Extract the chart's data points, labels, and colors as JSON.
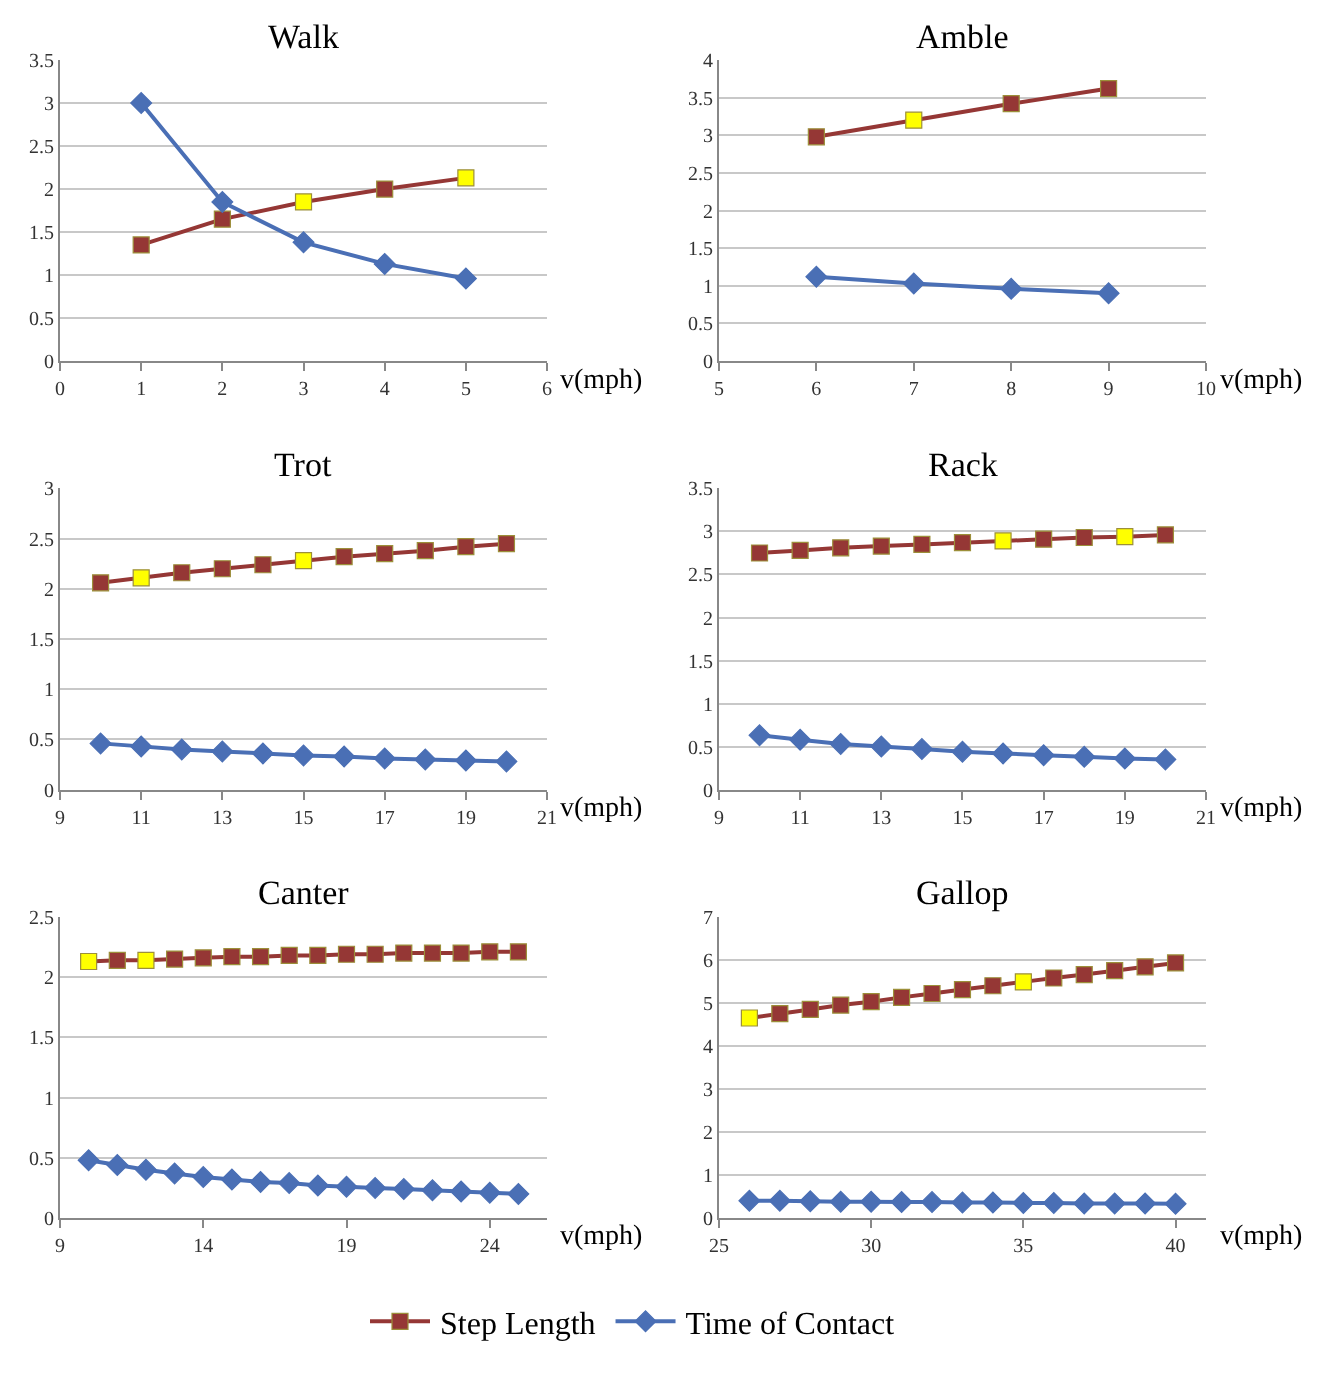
{
  "chart_data": [
    {
      "type": "line",
      "title": "Walk",
      "xlabel": "v(mph)",
      "x": [
        1,
        2,
        3,
        4,
        5
      ],
      "xlim": [
        0,
        6
      ],
      "xticks": [
        0,
        1,
        2,
        3,
        4,
        5,
        6
      ],
      "ylim": [
        0,
        3.5
      ],
      "yticks": [
        0,
        0.5,
        1,
        1.5,
        2,
        2.5,
        3,
        3.5
      ],
      "grid": "y",
      "legend": "bottom",
      "series": [
        {
          "name": "Step Length",
          "color": "#953735",
          "marker": "square",
          "values": [
            1.35,
            1.65,
            1.85,
            2.0,
            2.13
          ],
          "colors": [
            "#953735",
            "#953735",
            "#ffff00",
            "#953735",
            "#ffff00"
          ]
        },
        {
          "name": "Time of Contact",
          "color": "#4a6fb5",
          "marker": "diamond",
          "values": [
            3.0,
            1.85,
            1.38,
            1.13,
            0.96
          ]
        }
      ]
    },
    {
      "type": "line",
      "title": "Amble",
      "xlabel": "v(mph)",
      "x": [
        6,
        7,
        8,
        9
      ],
      "xlim": [
        5,
        10
      ],
      "xticks": [
        5,
        6,
        7,
        8,
        9,
        10
      ],
      "ylim": [
        0,
        4
      ],
      "yticks": [
        0,
        0.5,
        1,
        1.5,
        2,
        2.5,
        3,
        3.5,
        4
      ],
      "grid": "y",
      "series": [
        {
          "color": "#953735",
          "marker": "square",
          "values": [
            2.98,
            3.2,
            3.42,
            3.62
          ],
          "colors": [
            "#953735",
            "#ffff00",
            "#953735",
            "#953735"
          ]
        },
        {
          "color": "#4a6fb5",
          "marker": "diamond",
          "values": [
            1.12,
            1.03,
            0.96,
            0.9
          ]
        }
      ]
    },
    {
      "type": "line",
      "title": "Trot",
      "xlabel": "v(mph)",
      "x": [
        10,
        11,
        12,
        13,
        14,
        15,
        16,
        17,
        18,
        19,
        20
      ],
      "xlim": [
        9,
        21
      ],
      "xticks": [
        9,
        11,
        13,
        15,
        17,
        19,
        21
      ],
      "ylim": [
        0,
        3
      ],
      "yticks": [
        0,
        0.5,
        1,
        1.5,
        2,
        2.5,
        3
      ],
      "grid": "y",
      "series": [
        {
          "color": "#953735",
          "marker": "square",
          "values": [
            2.06,
            2.11,
            2.16,
            2.2,
            2.24,
            2.28,
            2.32,
            2.35,
            2.38,
            2.42,
            2.45
          ],
          "colors": [
            "#953735",
            "#ffff00",
            "#953735",
            "#953735",
            "#953735",
            "#ffff00",
            "#953735",
            "#953735",
            "#953735",
            "#953735",
            "#953735"
          ]
        },
        {
          "color": "#4a6fb5",
          "marker": "diamond",
          "values": [
            0.46,
            0.43,
            0.4,
            0.38,
            0.36,
            0.34,
            0.33,
            0.31,
            0.3,
            0.29,
            0.28
          ]
        }
      ]
    },
    {
      "type": "line",
      "title": "Rack",
      "xlabel": "v(mph)",
      "x": [
        10,
        11,
        12,
        13,
        14,
        15,
        16,
        17,
        18,
        19,
        20
      ],
      "xlim": [
        9,
        21
      ],
      "xticks": [
        9,
        11,
        13,
        15,
        17,
        19,
        21
      ],
      "ylim": [
        0,
        3.5
      ],
      "yticks": [
        0,
        0.5,
        1,
        1.5,
        2,
        2.5,
        3,
        3.5
      ],
      "grid": "y",
      "series": [
        {
          "color": "#953735",
          "marker": "square",
          "values": [
            2.75,
            2.78,
            2.81,
            2.83,
            2.85,
            2.87,
            2.89,
            2.91,
            2.93,
            2.94,
            2.96
          ],
          "colors": [
            "#953735",
            "#953735",
            "#953735",
            "#953735",
            "#953735",
            "#953735",
            "#ffff00",
            "#953735",
            "#953735",
            "#ffff00",
            "#953735"
          ]
        },
        {
          "color": "#4a6fb5",
          "marker": "diamond",
          "values": [
            0.63,
            0.58,
            0.53,
            0.5,
            0.47,
            0.44,
            0.42,
            0.4,
            0.38,
            0.36,
            0.35
          ]
        }
      ]
    },
    {
      "type": "line",
      "title": "Canter",
      "xlabel": "v(mph)",
      "x": [
        10,
        11,
        12,
        13,
        14,
        15,
        16,
        17,
        18,
        19,
        20,
        21,
        22,
        23,
        24,
        25
      ],
      "xlim": [
        9,
        26
      ],
      "xticks": [
        9,
        14,
        19,
        24
      ],
      "ylim": [
        0,
        2.5
      ],
      "yticks": [
        0,
        0.5,
        1,
        1.5,
        2,
        2.5
      ],
      "grid": "y",
      "series": [
        {
          "color": "#953735",
          "marker": "square",
          "values": [
            2.13,
            2.14,
            2.14,
            2.15,
            2.16,
            2.17,
            2.17,
            2.18,
            2.18,
            2.19,
            2.19,
            2.2,
            2.2,
            2.2,
            2.21,
            2.21
          ],
          "colors": [
            "#ffff00",
            "#953735",
            "#ffff00",
            "#953735",
            "#953735",
            "#953735",
            "#953735",
            "#953735",
            "#953735",
            "#953735",
            "#953735",
            "#953735",
            "#953735",
            "#953735",
            "#953735",
            "#953735"
          ]
        },
        {
          "color": "#4a6fb5",
          "marker": "diamond",
          "values": [
            0.48,
            0.44,
            0.4,
            0.37,
            0.34,
            0.32,
            0.3,
            0.29,
            0.27,
            0.26,
            0.25,
            0.24,
            0.23,
            0.22,
            0.21,
            0.2
          ]
        }
      ]
    },
    {
      "type": "line",
      "title": "Gallop",
      "xlabel": "v(mph)",
      "x": [
        26,
        27,
        28,
        29,
        30,
        31,
        32,
        33,
        34,
        35,
        36,
        37,
        38,
        39,
        40
      ],
      "xlim": [
        25,
        41
      ],
      "xticks": [
        25,
        30,
        35,
        40
      ],
      "ylim": [
        0,
        7
      ],
      "yticks": [
        0,
        1,
        2,
        3,
        4,
        5,
        6,
        7
      ],
      "grid": "y",
      "series": [
        {
          "color": "#953735",
          "marker": "square",
          "values": [
            4.65,
            4.75,
            4.85,
            4.95,
            5.03,
            5.13,
            5.22,
            5.31,
            5.4,
            5.49,
            5.58,
            5.66,
            5.75,
            5.84,
            5.93
          ],
          "colors": [
            "#ffff00",
            "#953735",
            "#953735",
            "#953735",
            "#953735",
            "#953735",
            "#953735",
            "#953735",
            "#953735",
            "#ffff00",
            "#953735",
            "#953735",
            "#953735",
            "#953735",
            "#953735"
          ]
        },
        {
          "color": "#4a6fb5",
          "marker": "diamond",
          "values": [
            0.4,
            0.4,
            0.39,
            0.38,
            0.38,
            0.37,
            0.37,
            0.36,
            0.36,
            0.35,
            0.35,
            0.34,
            0.34,
            0.34,
            0.33
          ]
        }
      ]
    }
  ]
}
